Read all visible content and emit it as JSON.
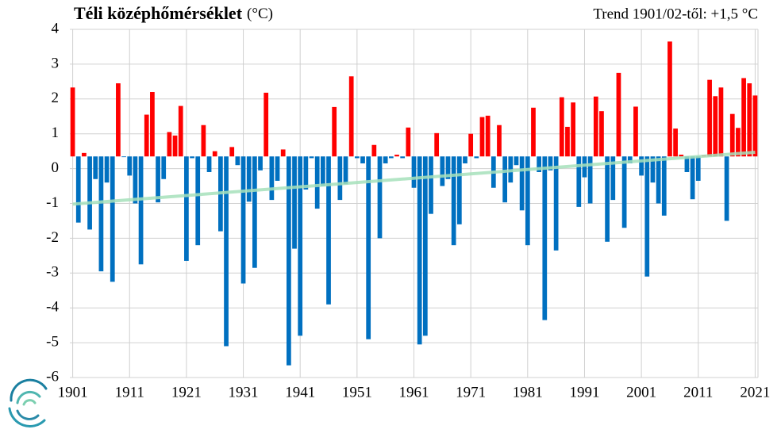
{
  "chart_data": {
    "type": "bar",
    "title": "Téli középhőmérséklet",
    "unit_label": "(°C)",
    "annotation": "Trend 1901/02-től: +1,5 °C",
    "categories": [
      "1901",
      "1902",
      "1903",
      "1904",
      "1905",
      "1906",
      "1907",
      "1908",
      "1909",
      "1910",
      "1911",
      "1912",
      "1913",
      "1914",
      "1915",
      "1916",
      "1917",
      "1918",
      "1919",
      "1920",
      "1921",
      "1922",
      "1923",
      "1924",
      "1925",
      "1926",
      "1927",
      "1928",
      "1929",
      "1930",
      "1931",
      "1932",
      "1933",
      "1934",
      "1935",
      "1936",
      "1937",
      "1938",
      "1939",
      "1940",
      "1941",
      "1942",
      "1943",
      "1944",
      "1945",
      "1946",
      "1947",
      "1948",
      "1949",
      "1950",
      "1951",
      "1952",
      "1953",
      "1954",
      "1955",
      "1956",
      "1957",
      "1958",
      "1959",
      "1960",
      "1961",
      "1962",
      "1963",
      "1964",
      "1965",
      "1966",
      "1967",
      "1968",
      "1969",
      "1970",
      "1971",
      "1972",
      "1973",
      "1974",
      "1975",
      "1976",
      "1977",
      "1978",
      "1979",
      "1980",
      "1981",
      "1982",
      "1983",
      "1984",
      "1985",
      "1986",
      "1987",
      "1988",
      "1989",
      "1990",
      "1991",
      "1992",
      "1993",
      "1994",
      "1995",
      "1996",
      "1997",
      "1998",
      "1999",
      "2000",
      "2001",
      "2002",
      "2003",
      "2004",
      "2005",
      "2006",
      "2007",
      "2008",
      "2009",
      "2010",
      "2011",
      "2012",
      "2013",
      "2014",
      "2015",
      "2016",
      "2017",
      "2018",
      "2019",
      "2020",
      "2021"
    ],
    "values": [
      2.33,
      -1.55,
      0.45,
      -1.75,
      -0.3,
      -2.95,
      -0.4,
      -3.25,
      2.45,
      0.33,
      -0.2,
      -1.0,
      -2.75,
      1.55,
      2.2,
      -0.97,
      -0.3,
      1.05,
      0.95,
      1.8,
      -2.65,
      0.3,
      -2.2,
      1.25,
      -0.1,
      0.5,
      -1.8,
      -5.1,
      0.62,
      0.1,
      -3.3,
      -0.95,
      -2.85,
      -0.05,
      2.18,
      -0.9,
      -0.35,
      0.55,
      -5.65,
      -2.3,
      -4.8,
      -0.6,
      0.3,
      -1.15,
      -0.5,
      -3.9,
      1.77,
      -0.9,
      -0.45,
      2.65,
      0.3,
      0.15,
      -4.9,
      0.68,
      -2.0,
      0.15,
      0.3,
      0.4,
      0.3,
      1.18,
      -0.55,
      -5.05,
      -4.8,
      -1.3,
      1.02,
      -0.5,
      -0.3,
      -2.2,
      -1.6,
      0.15,
      1.0,
      0.3,
      1.48,
      1.52,
      -0.55,
      1.25,
      -0.97,
      -0.4,
      0.1,
      -1.2,
      -2.2,
      1.75,
      -0.1,
      -4.35,
      -0.05,
      -2.35,
      2.05,
      1.2,
      1.9,
      -1.1,
      -0.25,
      -1.0,
      2.07,
      1.65,
      -2.1,
      -0.9,
      2.75,
      -1.7,
      0.15,
      1.78,
      -0.2,
      -3.1,
      -0.4,
      -1.0,
      -1.35,
      3.65,
      1.15,
      0.4,
      -0.1,
      -0.88,
      -0.35,
      0.38,
      2.55,
      2.08,
      2.33,
      -1.5,
      1.57,
      1.17,
      2.6,
      2.45,
      2.1
    ],
    "bar_base": 0.35,
    "color_above": "#ff0000",
    "color_below": "#0070c0",
    "label_every": 10,
    "ylim": [
      -6,
      4
    ],
    "yticks": [
      -6,
      -5,
      -4,
      -3,
      -2,
      -1,
      0,
      1,
      2,
      3,
      4
    ],
    "grid": true,
    "trend": {
      "x": [
        "1901",
        "2021"
      ],
      "values": [
        -1.02,
        0.47
      ],
      "color": "#a6e0bb"
    }
  }
}
